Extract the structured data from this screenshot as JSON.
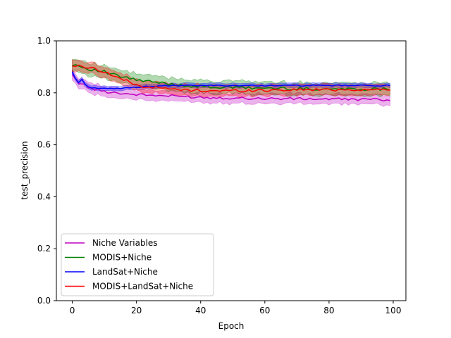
{
  "chart_data": {
    "type": "line",
    "title": "",
    "xlabel": "Epoch",
    "ylabel": "test_precision",
    "xlim": [
      -4.95,
      103.95
    ],
    "ylim": [
      0.0,
      1.0
    ],
    "xticks": [
      0,
      20,
      40,
      60,
      80,
      100
    ],
    "xtick_labels": [
      "0",
      "20",
      "40",
      "60",
      "80",
      "100"
    ],
    "yticks": [
      0.0,
      0.2,
      0.4,
      0.6,
      0.8,
      1.0
    ],
    "ytick_labels": [
      "0.0",
      "0.2",
      "0.4",
      "0.6",
      "0.8",
      "1.0"
    ],
    "grid": false,
    "legend_position": "lower-left",
    "series": [
      {
        "name": "Niche Variables",
        "color": "#bf00bf",
        "keypoints": [
          [
            0,
            0.865
          ],
          [
            2,
            0.84
          ],
          [
            4,
            0.83
          ],
          [
            6,
            0.815
          ],
          [
            8,
            0.812
          ],
          [
            10,
            0.805
          ],
          [
            14,
            0.8
          ],
          [
            18,
            0.795
          ],
          [
            22,
            0.792
          ],
          [
            26,
            0.79
          ],
          [
            30,
            0.788
          ],
          [
            36,
            0.785
          ],
          [
            42,
            0.782
          ],
          [
            50,
            0.78
          ],
          [
            60,
            0.778
          ],
          [
            70,
            0.777
          ],
          [
            80,
            0.776
          ],
          [
            90,
            0.775
          ],
          [
            99,
            0.773
          ]
        ],
        "band": 0.022
      },
      {
        "name": "MODIS+Niche",
        "color": "#008000",
        "keypoints": [
          [
            0,
            0.91
          ],
          [
            2,
            0.905
          ],
          [
            4,
            0.895
          ],
          [
            6,
            0.89
          ],
          [
            8,
            0.885
          ],
          [
            10,
            0.88
          ],
          [
            14,
            0.865
          ],
          [
            18,
            0.855
          ],
          [
            22,
            0.845
          ],
          [
            26,
            0.84
          ],
          [
            30,
            0.835
          ],
          [
            34,
            0.83
          ],
          [
            38,
            0.825
          ],
          [
            44,
            0.822
          ],
          [
            50,
            0.82
          ],
          [
            60,
            0.818
          ],
          [
            70,
            0.816
          ],
          [
            80,
            0.815
          ],
          [
            90,
            0.815
          ],
          [
            99,
            0.815
          ]
        ],
        "band": 0.028
      },
      {
        "name": "LandSat+Niche",
        "color": "#0000ff",
        "keypoints": [
          [
            0,
            0.88
          ],
          [
            1,
            0.855
          ],
          [
            2,
            0.84
          ],
          [
            3,
            0.85
          ],
          [
            4,
            0.835
          ],
          [
            5,
            0.822
          ],
          [
            8,
            0.818
          ],
          [
            12,
            0.815
          ],
          [
            16,
            0.818
          ],
          [
            20,
            0.822
          ],
          [
            24,
            0.825
          ],
          [
            30,
            0.827
          ],
          [
            40,
            0.828
          ],
          [
            60,
            0.828
          ],
          [
            80,
            0.828
          ],
          [
            99,
            0.828
          ]
        ],
        "band": 0.01
      },
      {
        "name": "MODIS+LandSat+Niche",
        "color": "#ff0000",
        "keypoints": [
          [
            0,
            0.905
          ],
          [
            2,
            0.902
          ],
          [
            4,
            0.9
          ],
          [
            6,
            0.895
          ],
          [
            8,
            0.89
          ],
          [
            10,
            0.88
          ],
          [
            12,
            0.87
          ],
          [
            14,
            0.86
          ],
          [
            16,
            0.85
          ],
          [
            18,
            0.84
          ],
          [
            20,
            0.83
          ],
          [
            22,
            0.825
          ],
          [
            26,
            0.82
          ],
          [
            30,
            0.815
          ],
          [
            36,
            0.81
          ],
          [
            44,
            0.808
          ],
          [
            50,
            0.808
          ],
          [
            60,
            0.81
          ],
          [
            70,
            0.812
          ],
          [
            80,
            0.812
          ],
          [
            90,
            0.812
          ],
          [
            99,
            0.812
          ]
        ],
        "band": 0.024
      }
    ]
  }
}
